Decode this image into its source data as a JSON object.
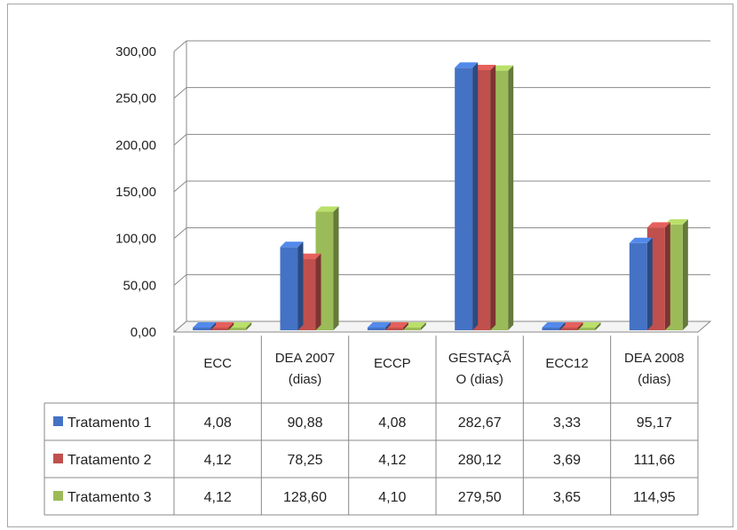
{
  "chart_data": {
    "type": "bar",
    "categories": [
      [
        "ECC"
      ],
      [
        "DEA 2007",
        "(dias)"
      ],
      [
        "ECCP"
      ],
      [
        "GESTAÇÃ",
        "O (dias)"
      ],
      [
        "ECC12"
      ],
      [
        "DEA 2008",
        "(dias)"
      ]
    ],
    "series": [
      {
        "name": "Tratamento 1",
        "labels": [
          "4,08",
          "90,88",
          "4,08",
          "282,67",
          "3,33",
          "95,17"
        ],
        "values": [
          4.08,
          90.88,
          4.08,
          282.67,
          3.33,
          95.17
        ]
      },
      {
        "name": "Tratamento 2",
        "labels": [
          "4,12",
          "78,25",
          "4,12",
          "280,12",
          "3,69",
          "111,66"
        ],
        "values": [
          4.12,
          78.25,
          4.12,
          280.12,
          3.69,
          111.66
        ]
      },
      {
        "name": "Tratamento 3",
        "labels": [
          "4,12",
          "128,60",
          "4,10",
          "279,50",
          "3,65",
          "114,95"
        ],
        "values": [
          4.12,
          128.6,
          4.1,
          279.5,
          3.65,
          114.95
        ]
      }
    ],
    "yticks": [
      "0,00",
      "50,00",
      "100,00",
      "150,00",
      "200,00",
      "250,00",
      "300,00"
    ],
    "ylim": [
      0,
      300
    ],
    "grid": true,
    "legend": "data-table-left",
    "colors": [
      "#4472c4",
      "#c0504d",
      "#9bbb59"
    ]
  }
}
